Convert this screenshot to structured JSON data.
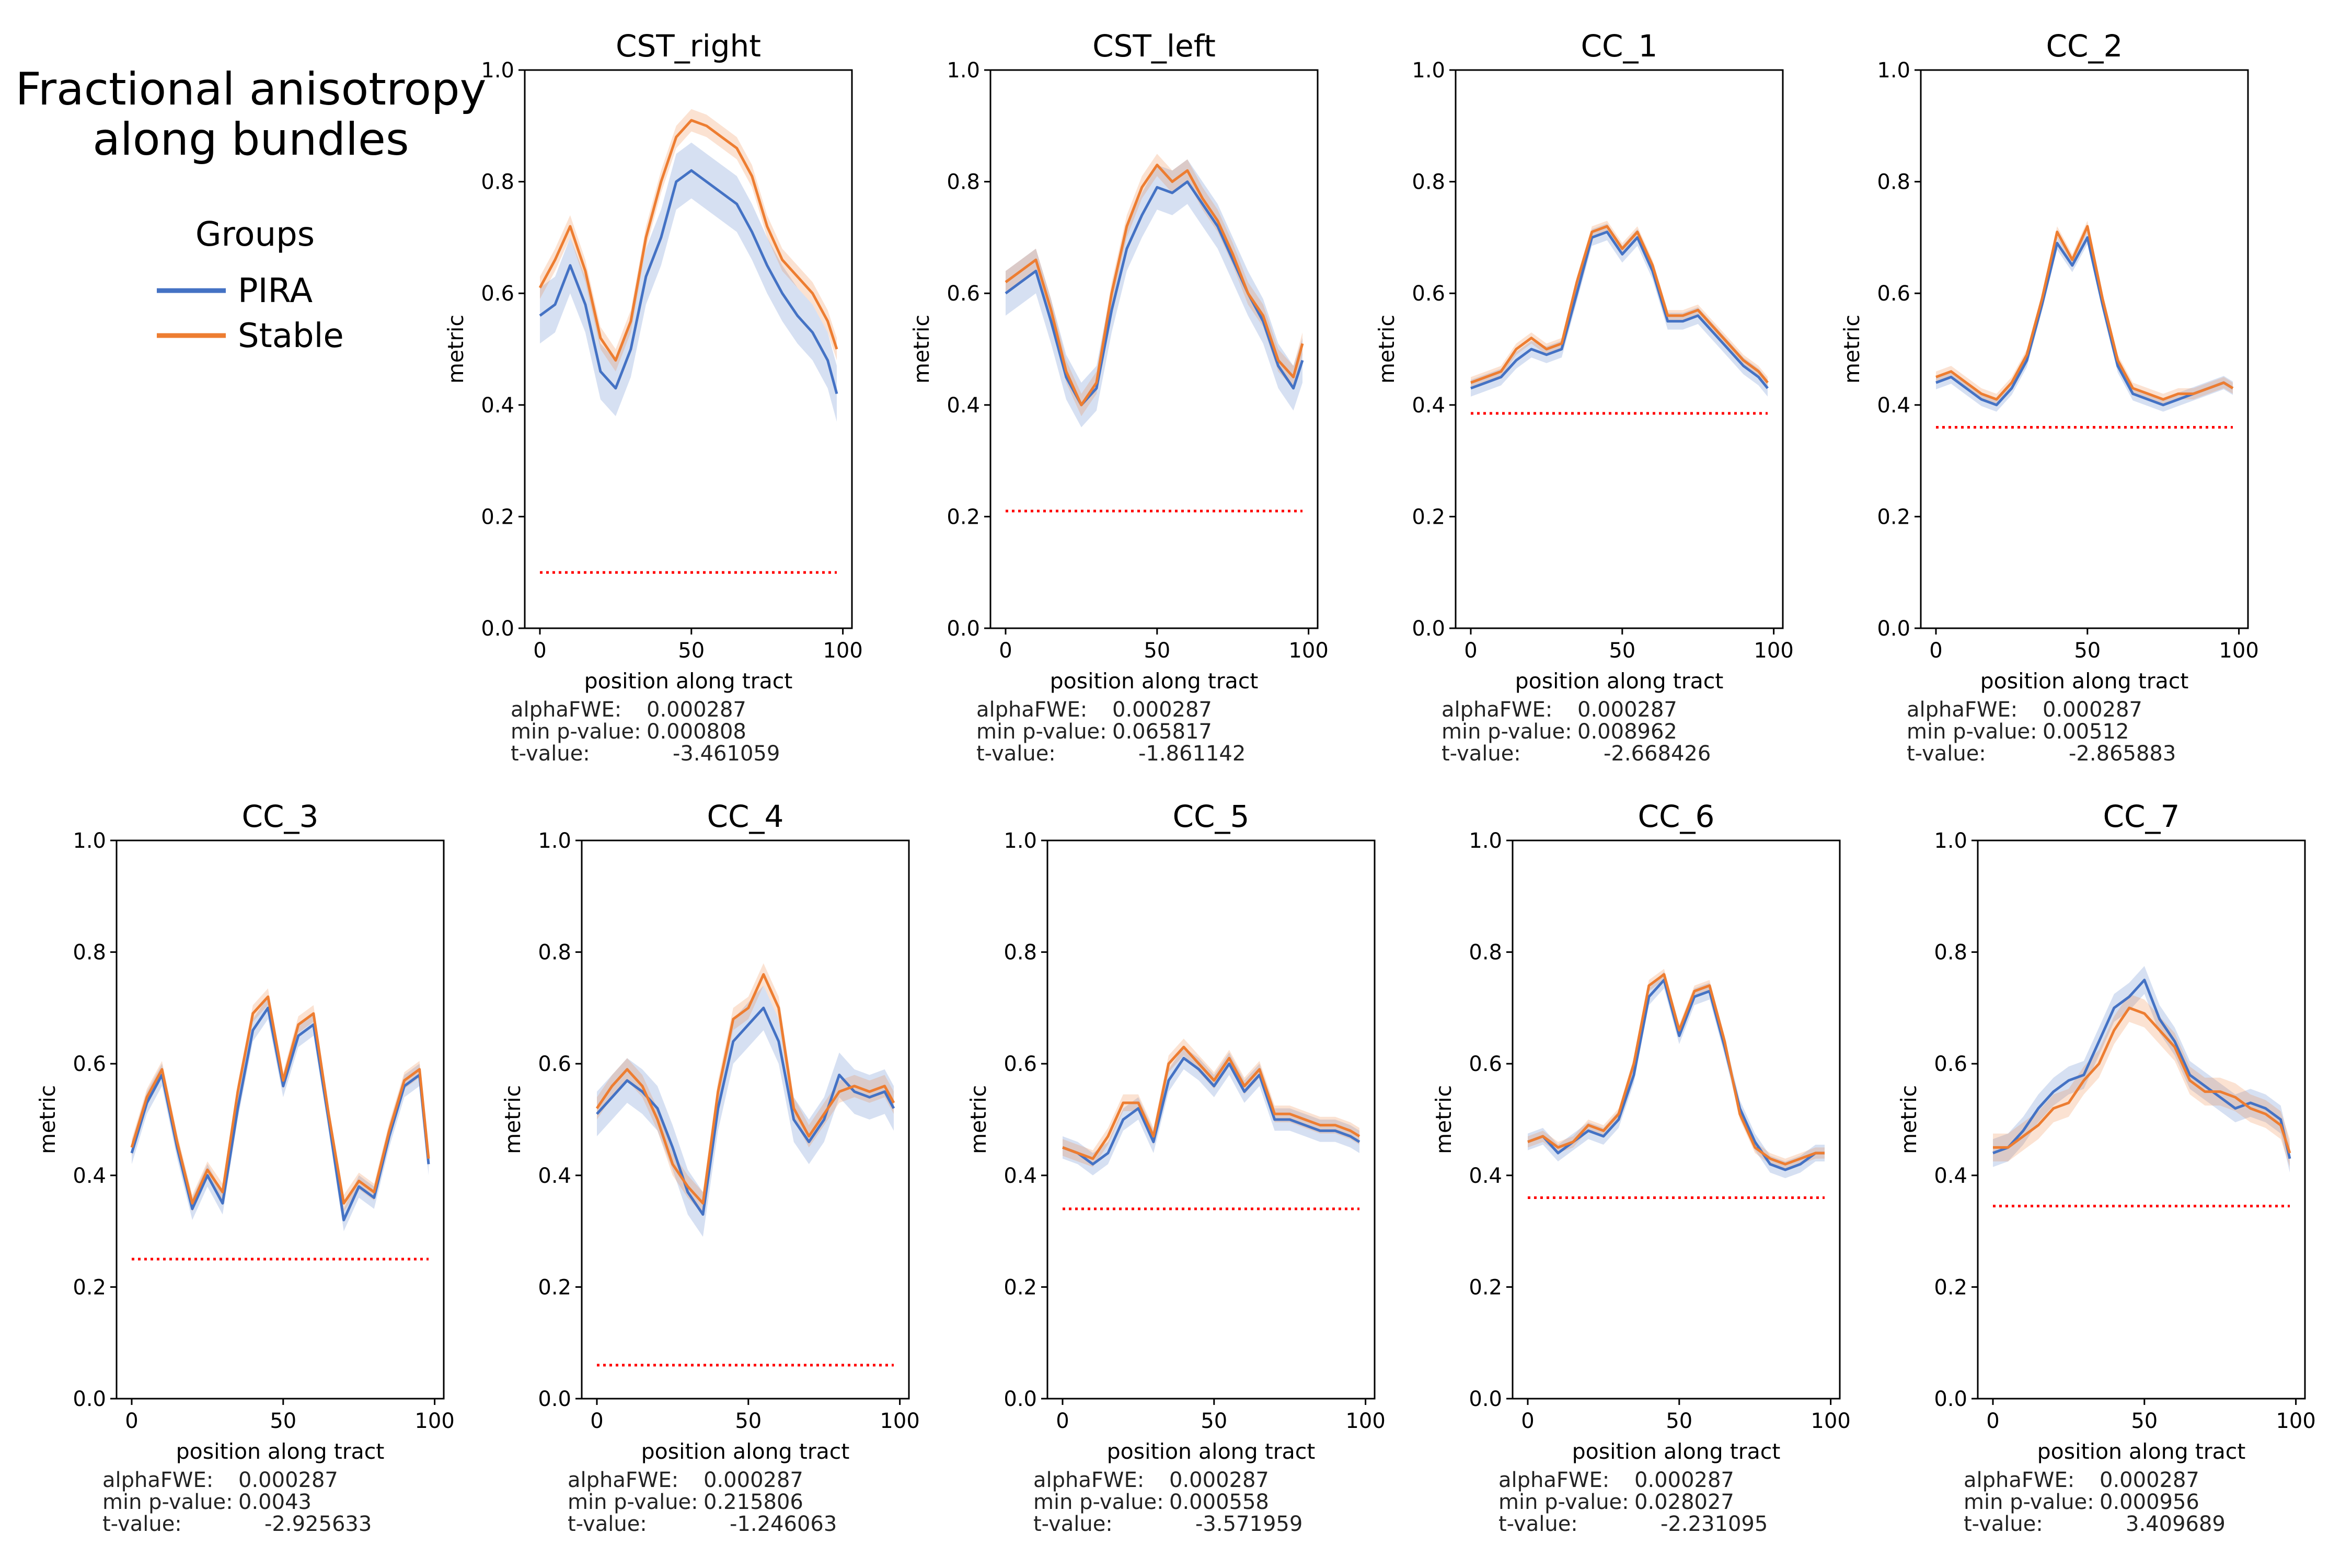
{
  "figure": {
    "title_line1": "Fractional anisotropy",
    "title_line2": "along bundles"
  },
  "legend": {
    "title": "Groups",
    "items": [
      {
        "label": "PIRA",
        "color": "#4472c4"
      },
      {
        "label": "Stable",
        "color": "#ed7d31"
      }
    ]
  },
  "threshold_color": "#ff0000",
  "stat_labels": {
    "alpha": "alphaFWE:",
    "minp": "min p-value:",
    "t": "t-value:"
  },
  "chart_data": [
    {
      "type": "line",
      "title": "CST_right",
      "xlabel": "position along tract",
      "ylabel": "metric",
      "xlim": [
        -5,
        103
      ],
      "ylim": [
        0,
        1
      ],
      "xticks": [
        0,
        50,
        100
      ],
      "yticks": [
        0.0,
        0.2,
        0.4,
        0.6,
        0.8,
        1.0
      ],
      "threshold": 0.1,
      "stats": {
        "alphaFWE": "0.000287",
        "min_p": "0.000808",
        "t": "-3.461059"
      },
      "x": [
        0,
        5,
        10,
        15,
        20,
        25,
        30,
        35,
        40,
        45,
        50,
        55,
        60,
        65,
        70,
        75,
        80,
        85,
        90,
        95,
        98
      ],
      "series": [
        {
          "name": "PIRA",
          "values": [
            0.56,
            0.58,
            0.65,
            0.58,
            0.46,
            0.43,
            0.5,
            0.63,
            0.7,
            0.8,
            0.82,
            0.8,
            0.78,
            0.76,
            0.71,
            0.65,
            0.6,
            0.56,
            0.53,
            0.48,
            0.42
          ],
          "band": 0.05
        },
        {
          "name": "Stable",
          "values": [
            0.61,
            0.66,
            0.72,
            0.64,
            0.52,
            0.48,
            0.55,
            0.7,
            0.8,
            0.88,
            0.91,
            0.9,
            0.88,
            0.86,
            0.81,
            0.72,
            0.66,
            0.63,
            0.6,
            0.55,
            0.5
          ],
          "band": 0.02
        }
      ]
    },
    {
      "type": "line",
      "title": "CST_left",
      "xlabel": "position along tract",
      "ylabel": "metric",
      "xlim": [
        -5,
        103
      ],
      "ylim": [
        0,
        1
      ],
      "xticks": [
        0,
        50,
        100
      ],
      "yticks": [
        0.0,
        0.2,
        0.4,
        0.6,
        0.8,
        1.0
      ],
      "threshold": 0.21,
      "stats": {
        "alphaFWE": "0.000287",
        "min_p": "0.065817",
        "t": "-1.861142"
      },
      "x": [
        0,
        5,
        10,
        15,
        20,
        25,
        30,
        35,
        40,
        45,
        50,
        55,
        60,
        65,
        70,
        75,
        80,
        85,
        90,
        95,
        98
      ],
      "series": [
        {
          "name": "PIRA",
          "values": [
            0.6,
            0.62,
            0.64,
            0.55,
            0.45,
            0.4,
            0.43,
            0.57,
            0.68,
            0.74,
            0.79,
            0.78,
            0.8,
            0.76,
            0.72,
            0.66,
            0.6,
            0.55,
            0.47,
            0.43,
            0.48
          ],
          "band": 0.04
        },
        {
          "name": "Stable",
          "values": [
            0.62,
            0.64,
            0.66,
            0.57,
            0.46,
            0.4,
            0.44,
            0.6,
            0.72,
            0.79,
            0.83,
            0.8,
            0.82,
            0.77,
            0.73,
            0.67,
            0.6,
            0.56,
            0.48,
            0.45,
            0.51
          ],
          "band": 0.02
        }
      ]
    },
    {
      "type": "line",
      "title": "CC_1",
      "xlabel": "position along tract",
      "ylabel": "metric",
      "xlim": [
        -5,
        103
      ],
      "ylim": [
        0,
        1
      ],
      "xticks": [
        0,
        50,
        100
      ],
      "yticks": [
        0.0,
        0.2,
        0.4,
        0.6,
        0.8,
        1.0
      ],
      "threshold": 0.385,
      "stats": {
        "alphaFWE": "0.000287",
        "min_p": "0.008962",
        "t": "-2.668426"
      },
      "x": [
        0,
        5,
        10,
        15,
        20,
        25,
        30,
        35,
        40,
        45,
        50,
        55,
        60,
        65,
        70,
        75,
        80,
        85,
        90,
        95,
        98
      ],
      "series": [
        {
          "name": "PIRA",
          "values": [
            0.43,
            0.44,
            0.45,
            0.48,
            0.5,
            0.49,
            0.5,
            0.6,
            0.7,
            0.71,
            0.67,
            0.7,
            0.64,
            0.55,
            0.55,
            0.56,
            0.53,
            0.5,
            0.47,
            0.45,
            0.43
          ],
          "band": 0.015
        },
        {
          "name": "Stable",
          "values": [
            0.44,
            0.45,
            0.46,
            0.5,
            0.52,
            0.5,
            0.51,
            0.62,
            0.71,
            0.72,
            0.68,
            0.71,
            0.65,
            0.56,
            0.56,
            0.57,
            0.54,
            0.51,
            0.48,
            0.46,
            0.44
          ],
          "band": 0.01
        }
      ]
    },
    {
      "type": "line",
      "title": "CC_2",
      "xlabel": "position along tract",
      "ylabel": "metric",
      "xlim": [
        -5,
        103
      ],
      "ylim": [
        0,
        1
      ],
      "xticks": [
        0,
        50,
        100
      ],
      "yticks": [
        0.0,
        0.2,
        0.4,
        0.6,
        0.8,
        1.0
      ],
      "threshold": 0.36,
      "stats": {
        "alphaFWE": "0.000287",
        "min_p": "0.00512",
        "t": "-2.865883"
      },
      "x": [
        0,
        5,
        10,
        15,
        20,
        25,
        30,
        35,
        40,
        45,
        50,
        55,
        60,
        65,
        70,
        75,
        80,
        85,
        90,
        95,
        98
      ],
      "series": [
        {
          "name": "PIRA",
          "values": [
            0.44,
            0.45,
            0.43,
            0.41,
            0.4,
            0.43,
            0.48,
            0.58,
            0.69,
            0.65,
            0.7,
            0.58,
            0.47,
            0.42,
            0.41,
            0.4,
            0.41,
            0.42,
            0.43,
            0.44,
            0.43
          ],
          "band": 0.012
        },
        {
          "name": "Stable",
          "values": [
            0.45,
            0.46,
            0.44,
            0.42,
            0.41,
            0.44,
            0.49,
            0.59,
            0.71,
            0.66,
            0.72,
            0.59,
            0.48,
            0.43,
            0.42,
            0.41,
            0.42,
            0.42,
            0.43,
            0.44,
            0.43
          ],
          "band": 0.01
        }
      ]
    },
    {
      "type": "line",
      "title": "CC_3",
      "xlabel": "position along tract",
      "ylabel": "metric",
      "xlim": [
        -5,
        103
      ],
      "ylim": [
        0,
        1
      ],
      "xticks": [
        0,
        50,
        100
      ],
      "yticks": [
        0.0,
        0.2,
        0.4,
        0.6,
        0.8,
        1.0
      ],
      "threshold": 0.25,
      "stats": {
        "alphaFWE": "0.000287",
        "min_p": "0.0043",
        "t": "-2.925633"
      },
      "x": [
        0,
        5,
        10,
        15,
        20,
        25,
        30,
        35,
        40,
        45,
        50,
        55,
        60,
        65,
        70,
        75,
        80,
        85,
        90,
        95,
        98
      ],
      "series": [
        {
          "name": "PIRA",
          "values": [
            0.44,
            0.53,
            0.58,
            0.45,
            0.34,
            0.4,
            0.35,
            0.52,
            0.66,
            0.7,
            0.56,
            0.65,
            0.67,
            0.5,
            0.32,
            0.38,
            0.36,
            0.47,
            0.56,
            0.58,
            0.42
          ],
          "band": 0.02
        },
        {
          "name": "Stable",
          "values": [
            0.45,
            0.54,
            0.59,
            0.46,
            0.35,
            0.41,
            0.37,
            0.55,
            0.69,
            0.72,
            0.57,
            0.67,
            0.69,
            0.51,
            0.35,
            0.39,
            0.37,
            0.48,
            0.57,
            0.59,
            0.43
          ],
          "band": 0.015
        }
      ]
    },
    {
      "type": "line",
      "title": "CC_4",
      "xlabel": "position along tract",
      "ylabel": "metric",
      "xlim": [
        -5,
        103
      ],
      "ylim": [
        0,
        1
      ],
      "xticks": [
        0,
        50,
        100
      ],
      "yticks": [
        0.0,
        0.2,
        0.4,
        0.6,
        0.8,
        1.0
      ],
      "threshold": 0.06,
      "stats": {
        "alphaFWE": "0.000287",
        "min_p": "0.215806",
        "t": "-1.246063"
      },
      "x": [
        0,
        5,
        10,
        15,
        20,
        25,
        30,
        35,
        40,
        45,
        50,
        55,
        60,
        65,
        70,
        75,
        80,
        85,
        90,
        95,
        98
      ],
      "series": [
        {
          "name": "PIRA",
          "values": [
            0.51,
            0.54,
            0.57,
            0.55,
            0.52,
            0.45,
            0.37,
            0.33,
            0.52,
            0.64,
            0.67,
            0.7,
            0.64,
            0.5,
            0.46,
            0.5,
            0.58,
            0.55,
            0.54,
            0.55,
            0.52
          ],
          "band": 0.04
        },
        {
          "name": "Stable",
          "values": [
            0.52,
            0.56,
            0.59,
            0.56,
            0.5,
            0.42,
            0.38,
            0.35,
            0.55,
            0.68,
            0.7,
            0.76,
            0.7,
            0.52,
            0.47,
            0.51,
            0.55,
            0.56,
            0.55,
            0.56,
            0.53
          ],
          "band": 0.02
        }
      ]
    },
    {
      "type": "line",
      "title": "CC_5",
      "xlabel": "position along tract",
      "ylabel": "metric",
      "xlim": [
        -5,
        103
      ],
      "ylim": [
        0,
        1
      ],
      "xticks": [
        0,
        50,
        100
      ],
      "yticks": [
        0.0,
        0.2,
        0.4,
        0.6,
        0.8,
        1.0
      ],
      "threshold": 0.34,
      "stats": {
        "alphaFWE": "0.000287",
        "min_p": "0.000558",
        "t": "-3.571959"
      },
      "x": [
        0,
        5,
        10,
        15,
        20,
        25,
        30,
        35,
        40,
        45,
        50,
        55,
        60,
        65,
        70,
        75,
        80,
        85,
        90,
        95,
        98
      ],
      "series": [
        {
          "name": "PIRA",
          "values": [
            0.45,
            0.44,
            0.42,
            0.44,
            0.5,
            0.52,
            0.46,
            0.57,
            0.61,
            0.59,
            0.56,
            0.6,
            0.55,
            0.58,
            0.5,
            0.5,
            0.49,
            0.48,
            0.48,
            0.47,
            0.46
          ],
          "band": 0.02
        },
        {
          "name": "Stable",
          "values": [
            0.45,
            0.44,
            0.43,
            0.47,
            0.53,
            0.53,
            0.47,
            0.6,
            0.63,
            0.6,
            0.57,
            0.61,
            0.56,
            0.59,
            0.51,
            0.51,
            0.5,
            0.49,
            0.49,
            0.48,
            0.47
          ],
          "band": 0.015
        }
      ]
    },
    {
      "type": "line",
      "title": "CC_6",
      "xlabel": "position along tract",
      "ylabel": "metric",
      "xlim": [
        -5,
        103
      ],
      "ylim": [
        0,
        1
      ],
      "xticks": [
        0,
        50,
        100
      ],
      "yticks": [
        0.0,
        0.2,
        0.4,
        0.6,
        0.8,
        1.0
      ],
      "threshold": 0.36,
      "stats": {
        "alphaFWE": "0.000287",
        "min_p": "0.028027",
        "t": "-2.231095"
      },
      "x": [
        0,
        5,
        10,
        15,
        20,
        25,
        30,
        35,
        40,
        45,
        50,
        55,
        60,
        65,
        70,
        75,
        80,
        85,
        90,
        95,
        98
      ],
      "series": [
        {
          "name": "PIRA",
          "values": [
            0.46,
            0.47,
            0.44,
            0.46,
            0.48,
            0.47,
            0.5,
            0.58,
            0.72,
            0.75,
            0.65,
            0.72,
            0.73,
            0.63,
            0.52,
            0.46,
            0.42,
            0.41,
            0.42,
            0.44,
            0.44
          ],
          "band": 0.015
        },
        {
          "name": "Stable",
          "values": [
            0.46,
            0.47,
            0.45,
            0.46,
            0.49,
            0.48,
            0.51,
            0.6,
            0.74,
            0.76,
            0.66,
            0.73,
            0.74,
            0.64,
            0.51,
            0.45,
            0.43,
            0.42,
            0.43,
            0.44,
            0.44
          ],
          "band": 0.01
        }
      ]
    },
    {
      "type": "line",
      "title": "CC_7",
      "xlabel": "position along tract",
      "ylabel": "metric",
      "xlim": [
        -5,
        103
      ],
      "ylim": [
        0,
        1
      ],
      "xticks": [
        0,
        50,
        100
      ],
      "yticks": [
        0.0,
        0.2,
        0.4,
        0.6,
        0.8,
        1.0
      ],
      "threshold": 0.345,
      "stats": {
        "alphaFWE": "0.000287",
        "min_p": "0.000956",
        "t": "3.409689"
      },
      "x": [
        0,
        5,
        10,
        15,
        20,
        25,
        30,
        35,
        40,
        45,
        50,
        55,
        60,
        65,
        70,
        75,
        80,
        85,
        90,
        95,
        98
      ],
      "series": [
        {
          "name": "PIRA",
          "values": [
            0.44,
            0.45,
            0.48,
            0.52,
            0.55,
            0.57,
            0.58,
            0.64,
            0.7,
            0.72,
            0.75,
            0.68,
            0.64,
            0.58,
            0.56,
            0.54,
            0.52,
            0.53,
            0.52,
            0.5,
            0.43
          ],
          "band": 0.025
        },
        {
          "name": "Stable",
          "values": [
            0.45,
            0.45,
            0.47,
            0.49,
            0.52,
            0.53,
            0.57,
            0.6,
            0.66,
            0.7,
            0.69,
            0.66,
            0.63,
            0.57,
            0.55,
            0.55,
            0.54,
            0.52,
            0.51,
            0.49,
            0.44
          ],
          "band": 0.025
        }
      ]
    }
  ]
}
